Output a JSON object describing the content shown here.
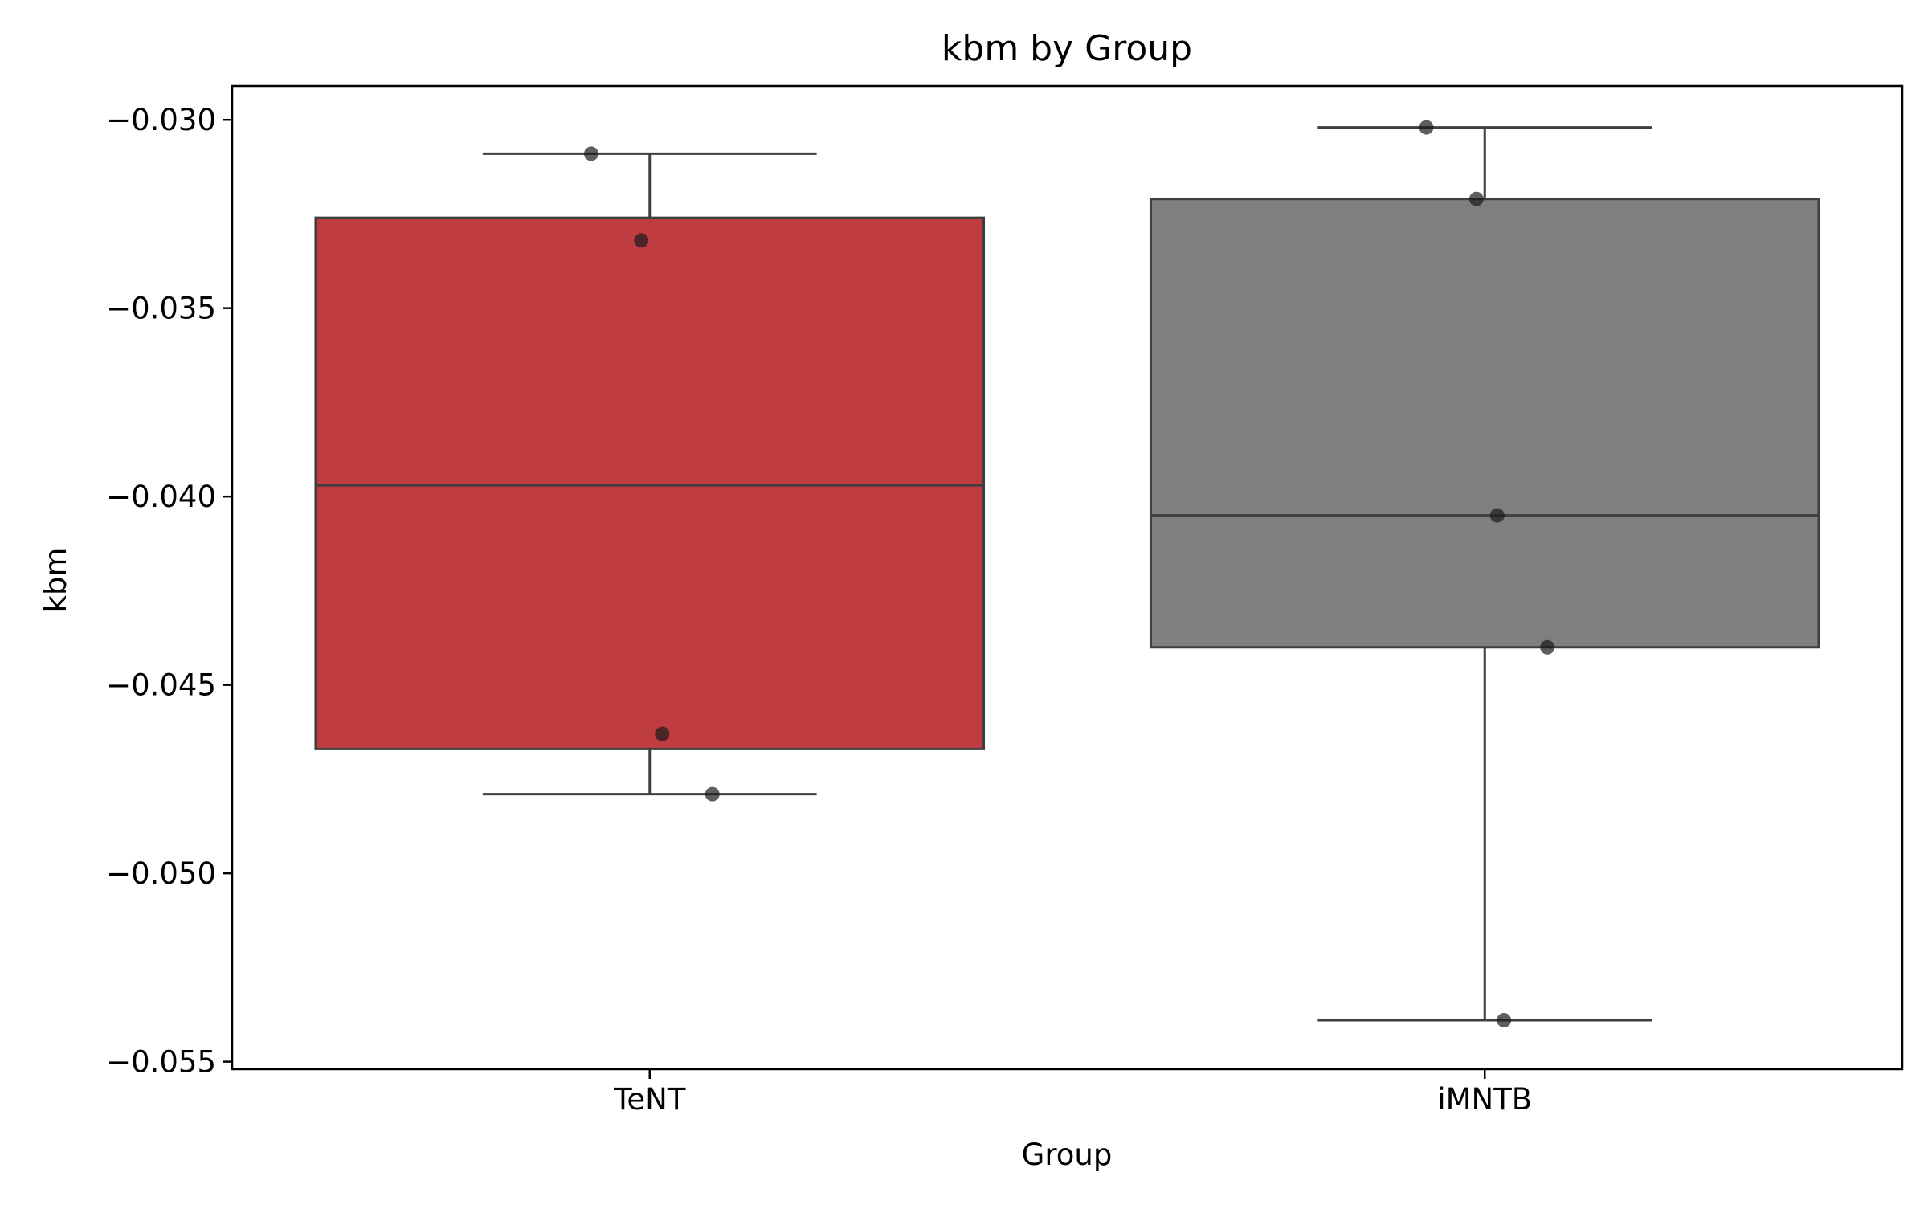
{
  "chart_data": {
    "type": "box",
    "title": "kbm by Group",
    "xlabel": "Group",
    "ylabel": "kbm",
    "ylim": [
      -0.0552,
      -0.0291
    ],
    "yticks": [
      -0.03,
      -0.035,
      -0.04,
      -0.045,
      -0.05,
      -0.055
    ],
    "ytick_labels": [
      "−0.030",
      "−0.035",
      "−0.040",
      "−0.045",
      "−0.050",
      "−0.055"
    ],
    "categories": [
      "TeNT",
      "iMNTB"
    ],
    "boxes": [
      {
        "category": "TeNT",
        "color": "#bf3d40",
        "whisker_low": -0.0479,
        "q1": -0.0467,
        "median": -0.0397,
        "q3": -0.0326,
        "whisker_high": -0.0309,
        "points": [
          -0.0309,
          -0.0332,
          -0.0463,
          -0.0479
        ]
      },
      {
        "category": "iMNTB",
        "color": "#7f7f7f",
        "whisker_low": -0.0539,
        "q1": -0.044,
        "median": -0.0405,
        "q3": -0.0321,
        "whisker_high": -0.0302,
        "points": [
          -0.0302,
          -0.0321,
          -0.0405,
          -0.044,
          -0.0539
        ]
      }
    ],
    "grid": false,
    "legend": "none"
  }
}
